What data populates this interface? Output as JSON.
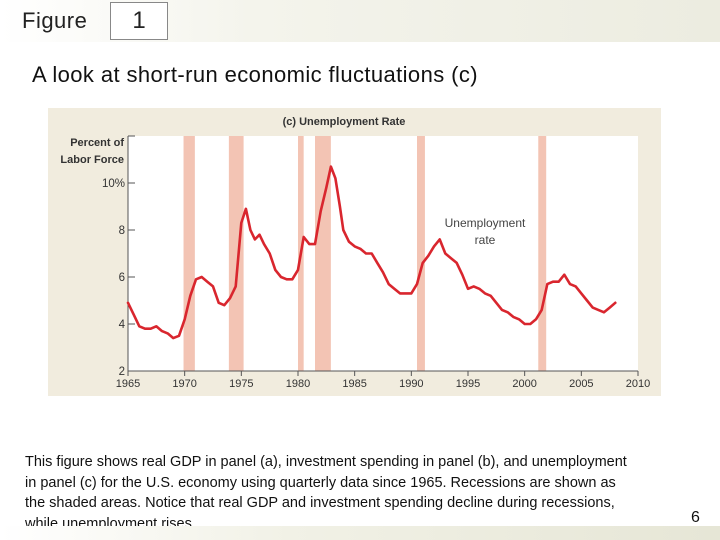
{
  "header": {
    "figure_label": "Figure",
    "figure_number": "1"
  },
  "title": "A look at short-run economic fluctuations (c)",
  "caption_lines": [
    "This figure shows real GDP in panel (a), investment spending in panel (b), and unemployment",
    "in panel (c) for the U.S. economy using quarterly data since 1965. Recessions are shown as",
    "the shaded areas. Notice that real GDP and investment spending decline during recessions,",
    "while unemployment rises."
  ],
  "page_number": "6",
  "colors": {
    "line": "#d9262e",
    "recession": "#f3c4b4",
    "panel_background": "#f1ecde",
    "plot_background": "#ffffff"
  },
  "chart_data": {
    "type": "line",
    "title": "(c) Unemployment Rate",
    "ylabel_lines": [
      "Percent of",
      "Labor Force"
    ],
    "xlim": [
      1965,
      2010
    ],
    "ylim": [
      2,
      12
    ],
    "x_ticks": [
      1965,
      1970,
      1975,
      1980,
      1985,
      1990,
      1995,
      2000,
      2005,
      2010
    ],
    "y_ticks": [
      {
        "value": 2,
        "label": "2"
      },
      {
        "value": 4,
        "label": "4"
      },
      {
        "value": 6,
        "label": "6"
      },
      {
        "value": 8,
        "label": "8"
      },
      {
        "value": 10,
        "label": "10%"
      }
    ],
    "grid": false,
    "annotations": [
      {
        "text_lines": [
          "Unemployment",
          "rate"
        ],
        "x": 1994,
        "y": 8.3
      }
    ],
    "recessions": [
      [
        1969.9,
        1970.9
      ],
      [
        1973.9,
        1975.2
      ],
      [
        1980.0,
        1980.5
      ],
      [
        1981.5,
        1982.9
      ],
      [
        1990.5,
        1991.2
      ],
      [
        2001.2,
        2001.9
      ]
    ],
    "series": [
      {
        "x": [
          1965.0,
          1965.5,
          1966.0,
          1966.5,
          1967.0,
          1967.5,
          1968.0,
          1968.5,
          1969.0,
          1969.5,
          1970.0,
          1970.5,
          1971.0,
          1971.5,
          1972.0,
          1972.5,
          1973.0,
          1973.5,
          1974.0,
          1974.5,
          1975.0,
          1975.4,
          1975.8,
          1976.2,
          1976.6,
          1977.0,
          1977.5,
          1978.0,
          1978.5,
          1979.0,
          1979.5,
          1980.0,
          1980.5,
          1981.0,
          1981.5,
          1982.0,
          1982.5,
          1982.9,
          1983.3,
          1983.7,
          1984.0,
          1984.5,
          1985.0,
          1985.5,
          1986.0,
          1986.5,
          1987.0,
          1987.5,
          1988.0,
          1988.5,
          1989.0,
          1989.5,
          1990.0,
          1990.5,
          1991.0,
          1991.5,
          1992.0,
          1992.5,
          1993.0,
          1993.5,
          1994.0,
          1994.5,
          1995.0,
          1995.5,
          1996.0,
          1996.5,
          1997.0,
          1997.5,
          1998.0,
          1998.5,
          1999.0,
          1999.5,
          2000.0,
          2000.5,
          2001.0,
          2001.5,
          2002.0,
          2002.5,
          2003.0,
          2003.5,
          2004.0,
          2004.5,
          2005.0,
          2005.5,
          2006.0,
          2006.5,
          2007.0,
          2007.5,
          2008.0
        ],
        "values": [
          4.9,
          4.4,
          3.9,
          3.8,
          3.8,
          3.9,
          3.7,
          3.6,
          3.4,
          3.5,
          4.2,
          5.2,
          5.9,
          6.0,
          5.8,
          5.6,
          4.9,
          4.8,
          5.1,
          5.6,
          8.3,
          8.9,
          8.0,
          7.6,
          7.8,
          7.4,
          7.0,
          6.3,
          6.0,
          5.9,
          5.9,
          6.3,
          7.7,
          7.4,
          7.4,
          8.8,
          9.8,
          10.7,
          10.2,
          9.0,
          8.0,
          7.5,
          7.3,
          7.2,
          7.0,
          7.0,
          6.6,
          6.2,
          5.7,
          5.5,
          5.3,
          5.3,
          5.3,
          5.7,
          6.6,
          6.9,
          7.3,
          7.6,
          7.0,
          6.8,
          6.6,
          6.1,
          5.5,
          5.6,
          5.5,
          5.3,
          5.2,
          4.9,
          4.6,
          4.5,
          4.3,
          4.2,
          4.0,
          4.0,
          4.2,
          4.6,
          5.7,
          5.8,
          5.8,
          6.1,
          5.7,
          5.6,
          5.3,
          5.0,
          4.7,
          4.6,
          4.5,
          4.7,
          4.9
        ]
      }
    ]
  }
}
